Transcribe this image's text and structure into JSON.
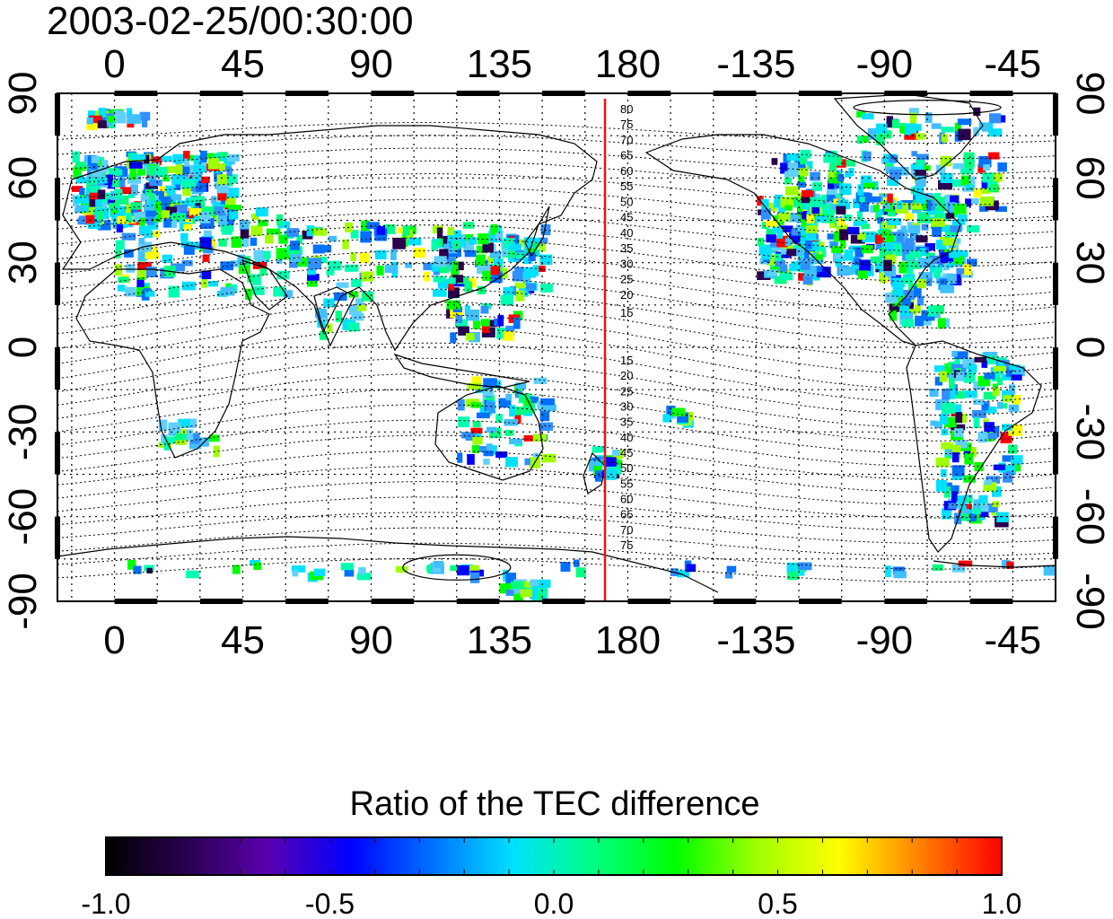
{
  "title": "2003-02-25/00:30:00",
  "map": {
    "lon_ticks_top": [
      "0",
      "45",
      "90",
      "135",
      "180",
      "-135",
      "-90",
      "-45"
    ],
    "lon_ticks_bottom": [
      "0",
      "45",
      "90",
      "135",
      "180",
      "-135",
      "-90",
      "-45"
    ],
    "lat_ticks_left": [
      "90",
      "60",
      "30",
      "0",
      "-30",
      "-60",
      "-90"
    ],
    "lat_ticks_right": [
      "90",
      "60",
      "30",
      "0",
      "-30",
      "-60",
      "-90"
    ],
    "lon_values": [
      0,
      45,
      90,
      135,
      180,
      225,
      270,
      315
    ],
    "lat_values": [
      90,
      60,
      30,
      0,
      -30,
      -60,
      -90
    ],
    "lon_range": [
      -20,
      330
    ],
    "lat_range": [
      -90,
      90
    ],
    "reference_meridian_lon": 172,
    "reference_meridian_color": "#ee1111",
    "magnetic_contour_labels_north": [
      "80",
      "75",
      "70",
      "65",
      "60",
      "55",
      "50",
      "45",
      "40",
      "35",
      "30",
      "25",
      "20",
      "15"
    ],
    "magnetic_contour_labels_south": [
      "15",
      "20",
      "25",
      "30",
      "35",
      "40",
      "45",
      "50",
      "55",
      "60",
      "65",
      "70",
      "75"
    ]
  },
  "colorbar": {
    "title": "Ratio of the TEC difference",
    "tick_labels": [
      "-1.0",
      "-0.5",
      "0.0",
      "0.5",
      "1.0"
    ],
    "range": [
      -1.0,
      1.0
    ],
    "colors": [
      "#000000",
      "#2a0050",
      "#5a00b0",
      "#0000ff",
      "#0070ff",
      "#00e0ff",
      "#00ff80",
      "#00ff00",
      "#a0ff00",
      "#ffff00",
      "#ff8000",
      "#ff0000"
    ]
  }
}
